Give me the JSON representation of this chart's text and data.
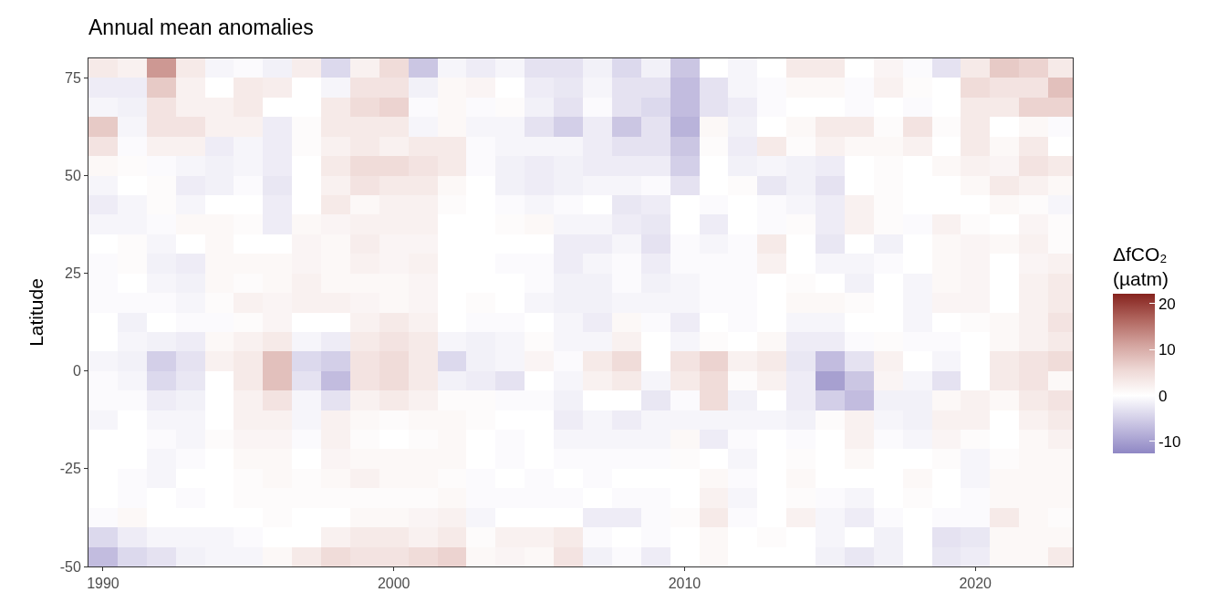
{
  "chart_data": {
    "type": "heatmap",
    "title": "Annual mean anomalies",
    "ylabel": "Latitude",
    "clabel": "ΔfCO₂\n(µatm)",
    "x": [
      1990,
      1991,
      1992,
      1993,
      1994,
      1995,
      1996,
      1997,
      1998,
      1999,
      2000,
      2001,
      2002,
      2003,
      2004,
      2005,
      2006,
      2007,
      2008,
      2009,
      2010,
      2011,
      2012,
      2013,
      2014,
      2015,
      2016,
      2017,
      2018,
      2019,
      2020,
      2021,
      2022,
      2023
    ],
    "y": [
      77.5,
      72.5,
      67.5,
      62.5,
      57.5,
      52.5,
      47.5,
      42.5,
      37.5,
      32.5,
      27.5,
      22.5,
      17.5,
      12.5,
      7.5,
      2.5,
      -2.5,
      -7.5,
      -12.5,
      -17.5,
      -22.5,
      -27.5,
      -32.5,
      -37.5,
      -42.5,
      -47.5
    ],
    "cells": [
      [
        3,
        2,
        12,
        3,
        -1,
        -0.5,
        -1.5,
        2.5,
        -4,
        2,
        5,
        -6,
        -1,
        -2,
        -1,
        -3,
        -3,
        -1.5,
        -4,
        -1.5,
        -6,
        0,
        -1,
        0,
        3,
        3,
        0,
        1.5,
        -0.5,
        -3,
        3,
        7,
        6,
        3
      ],
      [
        -2,
        -2,
        7,
        2,
        0,
        3,
        2.5,
        0,
        -1,
        4,
        4,
        -1.5,
        1,
        1.5,
        0,
        -2,
        -2.5,
        -1,
        -3,
        -3,
        -7,
        -3,
        -1,
        -0.5,
        1,
        1,
        -0.5,
        2,
        0.5,
        0,
        5,
        4,
        4,
        8
      ],
      [
        -1,
        -1.5,
        4,
        2,
        2,
        3,
        0,
        0,
        3,
        5,
        6,
        -0.5,
        1,
        -0.5,
        0.5,
        -1.5,
        -3,
        -0.5,
        -3,
        -4,
        -7,
        -3,
        -2,
        -0.5,
        0,
        0,
        -0.5,
        0,
        -0.5,
        0,
        3,
        3,
        6,
        6
      ],
      [
        7,
        -1,
        4,
        4,
        2,
        2,
        -2,
        0.5,
        3,
        3,
        3,
        -1,
        1,
        -1,
        -1,
        -3,
        -5,
        -2,
        -6,
        -3,
        -8,
        1,
        -1.5,
        0,
        1,
        3,
        3,
        0.5,
        4,
        0.5,
        3,
        0,
        1,
        -0.5
      ],
      [
        4,
        -0.5,
        2,
        2,
        -2,
        -1,
        -2,
        0.5,
        2,
        3,
        2,
        3,
        3,
        -0.5,
        -1,
        -1,
        -1,
        -2,
        -3,
        -3,
        -6,
        0.5,
        -2,
        3,
        0.5,
        2,
        1,
        1,
        2,
        0,
        3,
        1,
        3,
        0
      ],
      [
        1,
        0.5,
        -0.5,
        -1,
        -1.5,
        -1,
        -2,
        0,
        3,
        5,
        5,
        4,
        3,
        -0.5,
        -1.5,
        -2,
        -1.5,
        -2,
        -2,
        -2,
        -5,
        0,
        -1.5,
        -1,
        -1.5,
        -2,
        0,
        0.5,
        0,
        1,
        2,
        1.5,
        4,
        3
      ],
      [
        -1,
        0,
        0.5,
        -2,
        -1.5,
        -0.5,
        -2.5,
        0,
        2,
        4,
        3,
        3,
        1,
        0,
        -1.5,
        -2,
        -1.5,
        -1,
        -1,
        -0.5,
        -3,
        0,
        0.5,
        -2.5,
        -1.5,
        -3,
        0,
        0.5,
        0,
        0,
        1,
        3,
        2,
        1
      ],
      [
        -2,
        -1,
        0.5,
        -1,
        0,
        0,
        -2,
        0,
        3,
        1,
        2,
        2,
        0.5,
        0,
        -0.5,
        -1,
        -0.5,
        0,
        -2.5,
        -2,
        0,
        -0.5,
        0,
        -0.5,
        -1,
        -2,
        2,
        0.5,
        0,
        0,
        0,
        1,
        0.5,
        -1
      ],
      [
        -1,
        -1,
        -0.5,
        1,
        1,
        0.5,
        -2,
        1,
        1.5,
        2,
        2,
        2,
        0,
        0,
        0.5,
        1,
        -1,
        -1,
        -2,
        -2.5,
        0,
        -2,
        0,
        -0.5,
        0.5,
        -2,
        2,
        0.5,
        -0.5,
        2,
        0.5,
        0,
        1.5,
        0.5
      ],
      [
        0,
        0.5,
        -1,
        0,
        1,
        0,
        0,
        1.5,
        1,
        2.5,
        1.5,
        1.5,
        0,
        0,
        0,
        0,
        -2,
        -2,
        -1,
        -3,
        -0.5,
        -1,
        -0.5,
        3,
        0,
        -2.5,
        0,
        -1.5,
        0,
        1,
        1.5,
        1,
        2,
        0.5
      ],
      [
        -0.5,
        0.5,
        -1.5,
        -2,
        1,
        1,
        1,
        1.5,
        1,
        2,
        1.5,
        2,
        0,
        0,
        -0.5,
        -0.5,
        -2,
        -1,
        -0.5,
        -2,
        -0.5,
        -0.5,
        -0.5,
        2,
        0,
        -1,
        -1,
        -0.5,
        0,
        1,
        1.5,
        0,
        1.5,
        2
      ],
      [
        -0.5,
        0,
        -1,
        -1.5,
        1,
        0.5,
        1,
        2,
        1,
        1,
        1,
        1.5,
        0,
        0,
        0,
        -0.5,
        -1.5,
        -1.5,
        -0.5,
        -1.5,
        -1,
        -0.5,
        -0.5,
        0,
        0.5,
        0,
        -1.5,
        0,
        -1,
        1,
        1.5,
        0,
        2,
        3
      ],
      [
        -0.5,
        -0.5,
        -0.5,
        -1,
        0.5,
        2,
        1.5,
        2,
        2,
        1.5,
        1,
        1.5,
        0,
        0.5,
        0,
        -1,
        -1.5,
        -1.5,
        -1,
        -1,
        -1,
        -0.5,
        -0.5,
        0,
        1,
        1,
        0.5,
        0,
        -1,
        1.5,
        1.5,
        0,
        2,
        3
      ],
      [
        0,
        -1.5,
        0,
        -0.5,
        -0.5,
        0.5,
        1.5,
        0,
        0,
        2,
        3,
        2,
        0,
        -0.5,
        -0.5,
        0,
        -1,
        -2,
        1,
        -0.5,
        -2,
        0,
        -0.5,
        0,
        -1,
        -1,
        0,
        0,
        -1,
        0,
        0.5,
        1,
        2,
        4
      ],
      [
        0,
        -1,
        -1.5,
        -2,
        1,
        2,
        3,
        -1,
        -2,
        3,
        4,
        3,
        -1,
        -1.5,
        -1,
        0.5,
        -1,
        -1,
        2,
        0,
        -1,
        0.5,
        0,
        1,
        -2,
        -2,
        -0.5,
        0.5,
        -0.5,
        -0.5,
        0,
        1,
        2,
        3
      ],
      [
        -1,
        -1.5,
        -5,
        -3,
        2,
        3,
        8,
        -4,
        -5,
        4,
        5,
        3,
        -4,
        -1.5,
        -1,
        1.5,
        -0.5,
        3,
        5,
        0,
        4,
        6,
        2,
        3,
        -2.5,
        -7,
        -3,
        2,
        0,
        -1,
        0,
        3,
        4,
        5
      ],
      [
        -0.5,
        -1,
        -4,
        -2.5,
        0,
        3,
        8,
        -3,
        -7,
        4,
        5,
        3,
        -1.5,
        -2,
        -3,
        0,
        -1,
        2,
        3,
        -1,
        3,
        5,
        0.5,
        2,
        -2,
        -10,
        -6,
        1.5,
        -1,
        -3,
        0,
        3,
        4,
        1
      ],
      [
        -0.5,
        -0.5,
        -2,
        -1.5,
        0,
        2,
        4,
        -1,
        -3,
        2,
        3,
        2,
        0.5,
        0.5,
        -0.5,
        -0.5,
        -1.5,
        0,
        0,
        -2.5,
        -0.5,
        5,
        -1.5,
        0,
        -2,
        -5,
        -7,
        -1.5,
        -1.5,
        1,
        2,
        1,
        3,
        4
      ],
      [
        -1,
        0,
        -1,
        -1,
        0,
        2,
        2,
        -1,
        2,
        1,
        0.5,
        1,
        1,
        0.5,
        0,
        0,
        -2,
        -1,
        -2,
        -1,
        -1,
        -1,
        -1,
        -1,
        -1.5,
        0.5,
        2,
        -1,
        -1.5,
        2,
        2,
        0,
        2,
        3
      ],
      [
        0,
        0,
        -0.5,
        -1,
        0.5,
        1.5,
        1.5,
        -0.5,
        2,
        0.5,
        0,
        0.5,
        1,
        0,
        -0.5,
        0,
        -1,
        -1,
        -1,
        -1,
        1,
        -2,
        -0.5,
        0,
        -0.5,
        0,
        2,
        -0.5,
        -1,
        1.5,
        0.5,
        0,
        1,
        2
      ],
      [
        0,
        0,
        -1,
        -0.5,
        0,
        1,
        1,
        0,
        1.5,
        1,
        1,
        1,
        1,
        0,
        -0.5,
        0,
        -0.5,
        -0.5,
        -0.5,
        -0.5,
        0.5,
        0,
        -1,
        0,
        0.5,
        0,
        1,
        0,
        0,
        0.5,
        -1,
        0.5,
        1,
        1
      ],
      [
        0,
        -0.5,
        -1,
        0,
        0,
        0.5,
        1,
        0.5,
        1,
        2,
        1,
        1,
        0.5,
        -0.5,
        0,
        -0.5,
        0,
        -0.5,
        0,
        0,
        0,
        1,
        -0.5,
        0,
        1,
        0,
        0,
        0,
        1,
        0,
        -1,
        1,
        1,
        1
      ],
      [
        0,
        -0.5,
        0,
        -0.5,
        0,
        0.5,
        0.5,
        0.5,
        0.5,
        0.5,
        0.5,
        0.5,
        1,
        -0.5,
        -0.5,
        -0.5,
        -0.5,
        0,
        -0.5,
        -0.5,
        0,
        2,
        -1,
        0,
        0.5,
        -0.5,
        -1,
        0,
        0.5,
        0,
        -0.5,
        1,
        1,
        1
      ],
      [
        -0.5,
        1,
        0,
        0,
        0,
        0,
        0.5,
        0,
        0,
        1,
        1,
        1.5,
        2,
        -1,
        0,
        0,
        0,
        -2,
        -2,
        -0.5,
        0.5,
        3,
        -0.5,
        0,
        2,
        -1,
        -2,
        -0.5,
        0,
        -0.5,
        -0.5,
        3,
        1,
        0.5
      ],
      [
        -4,
        -2,
        -1,
        -1,
        -1,
        -0.5,
        0,
        0,
        2,
        3,
        3,
        2,
        3,
        0.5,
        2,
        2,
        3,
        -0.5,
        0,
        -0.5,
        0,
        1,
        0,
        0.5,
        0,
        -1,
        0,
        -1.5,
        0,
        -3,
        -2.5,
        1,
        1,
        1
      ],
      [
        -7,
        -4,
        -3,
        -1.5,
        -1,
        -1,
        1,
        3,
        5,
        4,
        4,
        5,
        6,
        1,
        1.5,
        1,
        4,
        -1.5,
        -0.5,
        -2,
        0,
        1,
        0,
        0,
        0,
        -1.5,
        -2.5,
        -1.5,
        0,
        -2.5,
        -2,
        1,
        1,
        3
      ]
    ],
    "xlim": [
      1989.5,
      2023.35
    ],
    "xticks": [
      1990,
      2000,
      2010,
      2020
    ],
    "ylim": [
      -50,
      80
    ],
    "yticks": [
      -50,
      -25,
      0,
      25,
      50,
      75
    ],
    "clim": [
      -12.6,
      22.1
    ],
    "cticks": [
      -10,
      0,
      10,
      20
    ]
  }
}
